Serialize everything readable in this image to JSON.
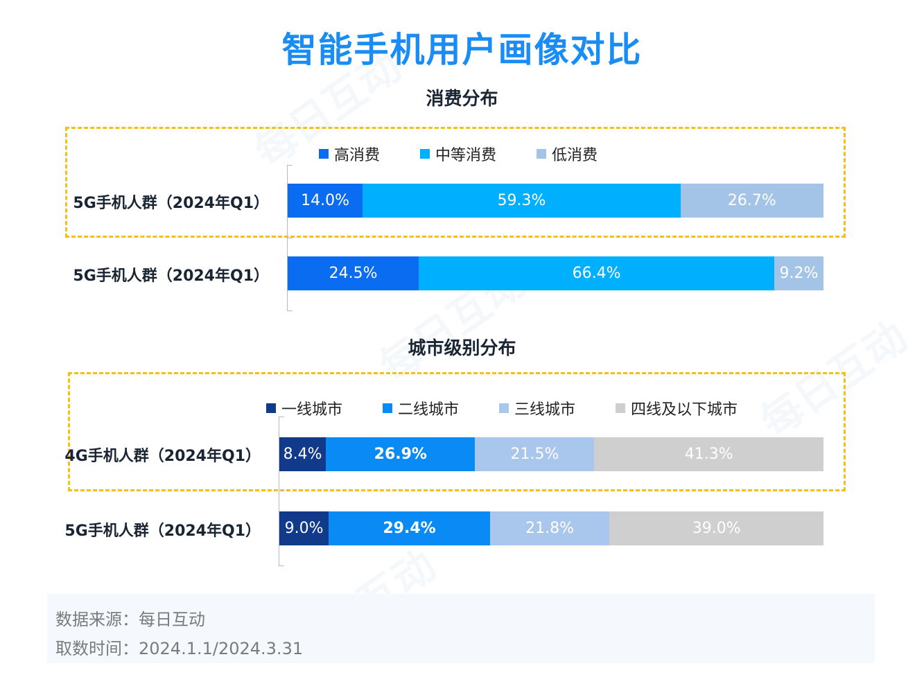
{
  "title": "智能手机用户画像对比",
  "watermark_text": "每日互动",
  "charts": [
    {
      "section_title": "消费分布",
      "legend": [
        {
          "name": "高消费",
          "color": "#0a6cf0"
        },
        {
          "name": "中等消费",
          "color": "#00b0ff"
        },
        {
          "name": "低消费",
          "color": "#a3c4e6"
        }
      ]
    },
    {
      "section_title": "城市级别分布",
      "legend": [
        {
          "name": "一线城市",
          "color": "#113a8a"
        },
        {
          "name": "二线城市",
          "color": "#0a8af5"
        },
        {
          "name": "三线城市",
          "color": "#a9c6ec"
        },
        {
          "name": "四线及以下城市",
          "color": "#cfcfcf"
        }
      ]
    }
  ],
  "chart_data": [
    {
      "type": "bar",
      "stacked": true,
      "orientation": "horizontal",
      "title": "消费分布",
      "categories": [
        "5G手机人群（2024年Q1）",
        "5G手机人群（2024年Q1）"
      ],
      "series": [
        {
          "name": "高消费",
          "values": [
            14.0,
            24.5
          ],
          "labels": [
            "14.0%",
            "24.5%"
          ]
        },
        {
          "name": "中等消费",
          "values": [
            59.3,
            66.4
          ],
          "labels": [
            "59.3%",
            "66.4%"
          ]
        },
        {
          "name": "低消费",
          "values": [
            26.7,
            9.2
          ],
          "labels": [
            "26.7%",
            "9.2%"
          ]
        }
      ],
      "unit": "%",
      "xlim": [
        0,
        100
      ],
      "legend_position": "top",
      "grid": false,
      "highlighted_row": 0
    },
    {
      "type": "bar",
      "stacked": true,
      "orientation": "horizontal",
      "title": "城市级别分布",
      "categories": [
        "4G手机人群（2024年Q1）",
        "5G手机人群（2024年Q1）"
      ],
      "series": [
        {
          "name": "一线城市",
          "values": [
            8.4,
            9.0
          ],
          "labels": [
            "8.4%",
            "9.0%"
          ]
        },
        {
          "name": "二线城市",
          "values": [
            26.9,
            29.4
          ],
          "labels": [
            "26.9%",
            "29.4%"
          ]
        },
        {
          "name": "三线城市",
          "values": [
            21.5,
            21.8
          ],
          "labels": [
            "21.5%",
            "21.8%"
          ]
        },
        {
          "name": "四线及以下城市",
          "values": [
            41.3,
            39.0
          ],
          "labels": [
            "41.3%",
            "39.0%"
          ]
        }
      ],
      "unit": "%",
      "xlim": [
        0,
        100
      ],
      "legend_position": "top",
      "grid": false,
      "highlighted_row": 0
    }
  ],
  "source": {
    "line1": "数据来源：每日互动",
    "line2": "取数时间：2024.1.1/2024.3.31"
  }
}
